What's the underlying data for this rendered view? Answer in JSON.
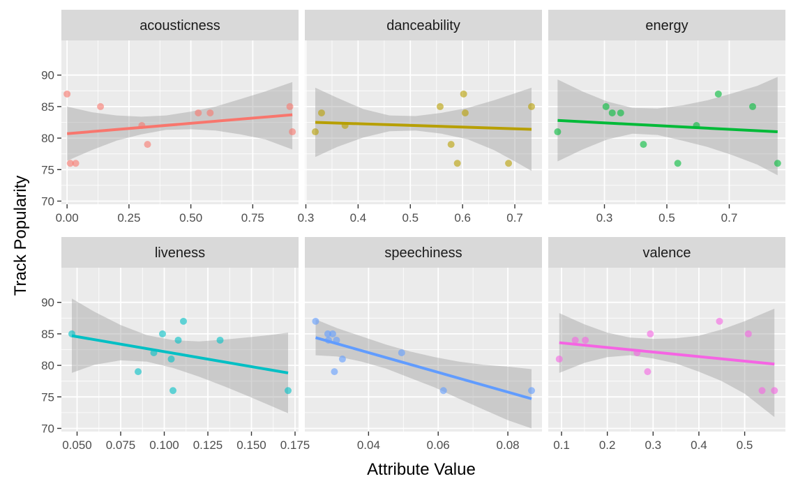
{
  "chart_data": {
    "type": "scatter",
    "xlabel": "Attribute Value",
    "ylabel": "Track Popularity",
    "ylim": [
      69.5,
      95.5
    ],
    "yticks": [
      70,
      75,
      80,
      85,
      90
    ],
    "grid": true,
    "facets": [
      {
        "name": "acousticness",
        "color": "#F8766D",
        "xlim": [
          -0.023,
          0.935
        ],
        "xticks": [
          0.0,
          0.25,
          0.5,
          0.75
        ],
        "xtick_labels": [
          "0.00",
          "0.25",
          "0.50",
          "0.75"
        ],
        "points": [
          [
            0.0,
            87
          ],
          [
            0.013,
            76
          ],
          [
            0.035,
            76
          ],
          [
            0.135,
            85
          ],
          [
            0.302,
            82
          ],
          [
            0.325,
            79
          ],
          [
            0.53,
            84
          ],
          [
            0.578,
            84
          ],
          [
            0.9,
            85
          ],
          [
            0.91,
            81
          ]
        ],
        "fit": [
          [
            0.0,
            80.7
          ],
          [
            0.91,
            83.7
          ]
        ],
        "ribbon": {
          "x": [
            0.0,
            0.1,
            0.2,
            0.3,
            0.4,
            0.5,
            0.6,
            0.7,
            0.8,
            0.91
          ],
          "upper": [
            85.0,
            84.1,
            83.6,
            83.4,
            83.6,
            84.2,
            85.0,
            86.2,
            87.4,
            88.9
          ],
          "lower": [
            76.4,
            78.1,
            79.6,
            80.6,
            81.3,
            81.4,
            81.2,
            80.6,
            79.8,
            78.2
          ]
        }
      },
      {
        "name": "danceability",
        "color": "#B79F00",
        "xlim": [
          0.298,
          0.752
        ],
        "xticks": [
          0.3,
          0.4,
          0.5,
          0.6,
          0.7
        ],
        "xtick_labels": [
          "0.3",
          "0.4",
          "0.5",
          "0.6",
          "0.7"
        ],
        "points": [
          [
            0.318,
            81
          ],
          [
            0.33,
            84
          ],
          [
            0.375,
            82
          ],
          [
            0.557,
            85
          ],
          [
            0.578,
            79
          ],
          [
            0.59,
            76
          ],
          [
            0.602,
            87
          ],
          [
            0.605,
            84
          ],
          [
            0.688,
            76
          ],
          [
            0.732,
            85
          ]
        ],
        "fit": [
          [
            0.318,
            82.5
          ],
          [
            0.732,
            81.4
          ]
        ],
        "ribbon": {
          "x": [
            0.318,
            0.36,
            0.41,
            0.46,
            0.51,
            0.56,
            0.61,
            0.66,
            0.7,
            0.732
          ],
          "upper": [
            88.0,
            86.4,
            84.6,
            83.6,
            83.5,
            84.0,
            84.8,
            86.0,
            87.1,
            88.0
          ],
          "lower": [
            77.0,
            78.6,
            80.1,
            81.1,
            81.2,
            80.7,
            79.8,
            78.1,
            76.3,
            74.8
          ]
        }
      },
      {
        "name": "energy",
        "color": "#00BA38",
        "xlim": [
          0.12,
          0.88
        ],
        "xticks": [
          0.3,
          0.5,
          0.7
        ],
        "xtick_labels": [
          "0.3",
          "0.5",
          "0.7"
        ],
        "points": [
          [
            0.15,
            81
          ],
          [
            0.305,
            85
          ],
          [
            0.325,
            84
          ],
          [
            0.352,
            84
          ],
          [
            0.425,
            79
          ],
          [
            0.535,
            76
          ],
          [
            0.595,
            82
          ],
          [
            0.665,
            87
          ],
          [
            0.775,
            85
          ],
          [
            0.855,
            76
          ]
        ],
        "fit": [
          [
            0.15,
            82.8
          ],
          [
            0.855,
            81.0
          ]
        ],
        "ribbon": {
          "x": [
            0.15,
            0.23,
            0.31,
            0.39,
            0.47,
            0.55,
            0.63,
            0.71,
            0.79,
            0.855
          ],
          "upper": [
            89.3,
            87.4,
            85.8,
            84.8,
            84.7,
            85.2,
            86.0,
            87.1,
            88.3,
            89.7
          ],
          "lower": [
            76.3,
            78.2,
            79.8,
            80.7,
            80.5,
            79.6,
            78.6,
            77.3,
            75.8,
            74.1
          ]
        }
      },
      {
        "name": "liveness",
        "color": "#00BFC4",
        "xlim": [
          0.041,
          0.177
        ],
        "xticks": [
          0.05,
          0.075,
          0.1,
          0.125,
          0.15,
          0.175
        ],
        "xtick_labels": [
          "0.050",
          "0.075",
          "0.100",
          "0.125",
          "0.150",
          "0.175"
        ],
        "points": [
          [
            0.047,
            85
          ],
          [
            0.085,
            79
          ],
          [
            0.094,
            82
          ],
          [
            0.099,
            85
          ],
          [
            0.104,
            81
          ],
          [
            0.105,
            76
          ],
          [
            0.108,
            84
          ],
          [
            0.111,
            87
          ],
          [
            0.132,
            84
          ],
          [
            0.171,
            76
          ]
        ],
        "fit": [
          [
            0.047,
            84.7
          ],
          [
            0.171,
            78.8
          ]
        ],
        "ribbon": {
          "x": [
            0.047,
            0.06,
            0.075,
            0.09,
            0.105,
            0.12,
            0.135,
            0.15,
            0.16,
            0.171
          ],
          "upper": [
            90.6,
            88.5,
            86.4,
            84.8,
            84.0,
            83.8,
            84.1,
            84.5,
            84.8,
            85.2
          ],
          "lower": [
            78.8,
            80.1,
            80.8,
            80.6,
            79.6,
            78.2,
            76.6,
            74.9,
            73.7,
            72.4
          ]
        }
      },
      {
        "name": "speechiness",
        "color": "#619CFF",
        "xlim": [
          0.0217,
          0.0898
        ],
        "xticks": [
          0.04,
          0.06,
          0.08
        ],
        "xtick_labels": [
          "0.04",
          "0.06",
          "0.08"
        ],
        "points": [
          [
            0.0248,
            87
          ],
          [
            0.0283,
            85
          ],
          [
            0.0285,
            84
          ],
          [
            0.0297,
            85
          ],
          [
            0.0302,
            79
          ],
          [
            0.0308,
            84
          ],
          [
            0.0325,
            81
          ],
          [
            0.0495,
            82
          ],
          [
            0.0615,
            76
          ],
          [
            0.0868,
            76
          ]
        ],
        "fit": [
          [
            0.0248,
            84.4
          ],
          [
            0.0868,
            74.7
          ]
        ],
        "ribbon": {
          "x": [
            0.0248,
            0.031,
            0.038,
            0.045,
            0.052,
            0.059,
            0.066,
            0.073,
            0.08,
            0.0868
          ],
          "upper": [
            87.3,
            85.9,
            84.6,
            83.3,
            82.2,
            81.3,
            80.6,
            80.1,
            79.8,
            79.4
          ],
          "lower": [
            81.6,
            81.4,
            80.6,
            79.5,
            78.0,
            76.5,
            74.7,
            73.0,
            71.3,
            70.0
          ]
        }
      },
      {
        "name": "valence",
        "color": "#F564E3",
        "xlim": [
          0.071,
          0.589
        ],
        "xticks": [
          0.1,
          0.2,
          0.3,
          0.4,
          0.5
        ],
        "xtick_labels": [
          "0.1",
          "0.2",
          "0.3",
          "0.4",
          "0.5"
        ],
        "points": [
          [
            0.095,
            81
          ],
          [
            0.13,
            84
          ],
          [
            0.152,
            84
          ],
          [
            0.265,
            82
          ],
          [
            0.288,
            79
          ],
          [
            0.294,
            85
          ],
          [
            0.445,
            87
          ],
          [
            0.508,
            85
          ],
          [
            0.538,
            76
          ],
          [
            0.565,
            76
          ]
        ],
        "fit": [
          [
            0.095,
            83.6
          ],
          [
            0.565,
            80.2
          ]
        ],
        "ribbon": {
          "x": [
            0.095,
            0.15,
            0.2,
            0.25,
            0.3,
            0.35,
            0.4,
            0.45,
            0.5,
            0.565
          ],
          "upper": [
            88.3,
            86.5,
            85.2,
            84.4,
            84.2,
            84.3,
            84.7,
            85.7,
            87.0,
            89.0
          ],
          "lower": [
            78.8,
            80.4,
            81.3,
            81.6,
            81.1,
            80.3,
            79.0,
            77.5,
            75.5,
            71.8
          ]
        }
      }
    ]
  }
}
